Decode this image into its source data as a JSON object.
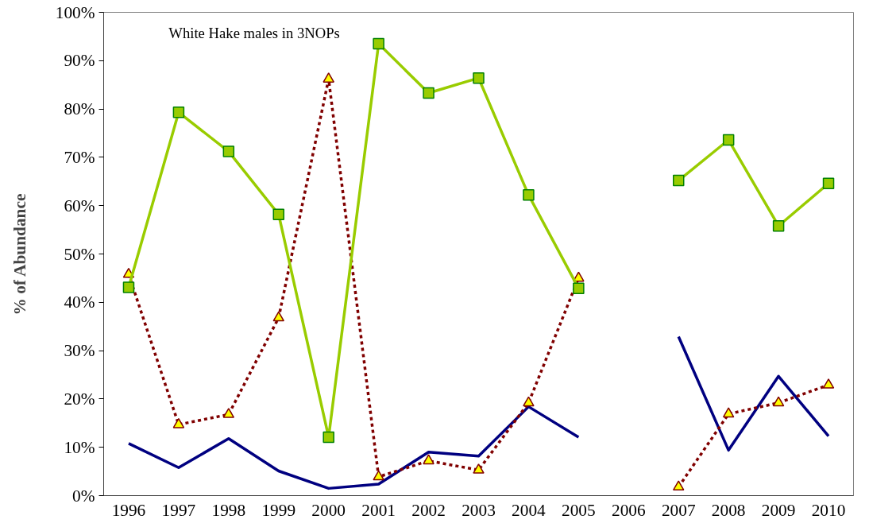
{
  "chart_data": {
    "type": "line",
    "title": "White Hake males in 3NOPs",
    "ylabel": "% of Abundance",
    "categories": [
      "1996",
      "1997",
      "1998",
      "1999",
      "2000",
      "2001",
      "2002",
      "2003",
      "2004",
      "2005",
      "2006",
      "2007",
      "2008",
      "2009",
      "2010"
    ],
    "series": [
      {
        "color": "#000080",
        "marker": "none",
        "line_style": "solid",
        "values": [
          10.8,
          5.8,
          11.8,
          5.1,
          1.5,
          2.4,
          9.0,
          8.2,
          18.4,
          12.1,
          null,
          32.9,
          9.4,
          24.7,
          12.3
        ]
      },
      {
        "color": "#800000",
        "marker": "triangle",
        "line_style": "dotted",
        "values": [
          45.8,
          14.7,
          16.8,
          36.8,
          86.2,
          3.9,
          7.2,
          5.3,
          19.2,
          45.0,
          null,
          1.8,
          16.9,
          19.2,
          22.9
        ]
      },
      {
        "color": "#99cc00",
        "marker": "square",
        "line_style": "solid",
        "values": [
          43.1,
          79.3,
          71.2,
          58.2,
          12.1,
          93.5,
          83.3,
          86.4,
          62.2,
          42.9,
          null,
          65.2,
          73.6,
          55.8,
          64.6
        ]
      }
    ],
    "ylim": [
      0,
      100
    ],
    "yticks": [
      {
        "value": 0,
        "label": "0%"
      },
      {
        "value": 10,
        "label": "10%"
      },
      {
        "value": 20,
        "label": "20%"
      },
      {
        "value": 30,
        "label": "30%"
      },
      {
        "value": 40,
        "label": "40%"
      },
      {
        "value": 50,
        "label": "50%"
      },
      {
        "value": 60,
        "label": "60%"
      },
      {
        "value": 70,
        "label": "70%"
      },
      {
        "value": 80,
        "label": "80%"
      },
      {
        "value": 90,
        "label": "90%"
      },
      {
        "value": 100,
        "label": "100%"
      }
    ],
    "grid": false
  }
}
